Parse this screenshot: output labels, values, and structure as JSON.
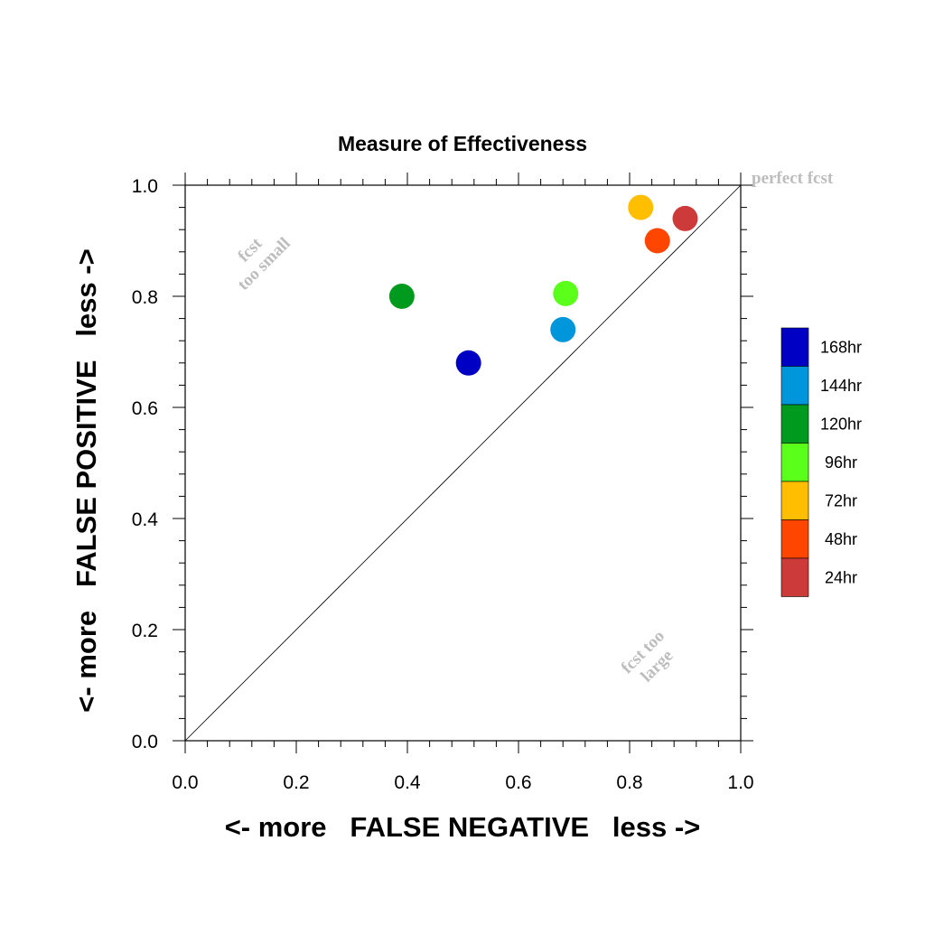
{
  "chart_data": {
    "type": "scatter",
    "title": "Measure of Effectiveness",
    "xlabel": "<- more   FALSE NEGATIVE   less ->",
    "ylabel": "<- more   FALSE POSITIVE   less ->",
    "xlim": [
      0.0,
      1.0
    ],
    "ylim": [
      0.0,
      1.0
    ],
    "xticks": [
      "0.0",
      "0.2",
      "0.4",
      "0.6",
      "0.8",
      "1.0"
    ],
    "yticks": [
      "0.0",
      "0.2",
      "0.4",
      "0.6",
      "0.8",
      "1.0"
    ],
    "grid": false,
    "diagonal_line": true,
    "legend_position": "right",
    "annotations": {
      "top_right": "perfect fcst",
      "upper_left": [
        "fcst",
        "too small"
      ],
      "lower_right": [
        "fcst too",
        "large"
      ]
    },
    "points": [
      {
        "label": "168hr",
        "x": 0.51,
        "y": 0.68,
        "color": "#0000c4"
      },
      {
        "label": "144hr",
        "x": 0.68,
        "y": 0.74,
        "color": "#0096dc"
      },
      {
        "label": "120hr",
        "x": 0.39,
        "y": 0.8,
        "color": "#009a1e"
      },
      {
        "label": "96hr",
        "x": 0.685,
        "y": 0.805,
        "color": "#5aff1a"
      },
      {
        "label": "72hr",
        "x": 0.82,
        "y": 0.96,
        "color": "#ffbf00"
      },
      {
        "label": "48hr",
        "x": 0.85,
        "y": 0.9,
        "color": "#ff4600"
      },
      {
        "label": "24hr",
        "x": 0.9,
        "y": 0.94,
        "color": "#cd3a3a"
      }
    ]
  }
}
